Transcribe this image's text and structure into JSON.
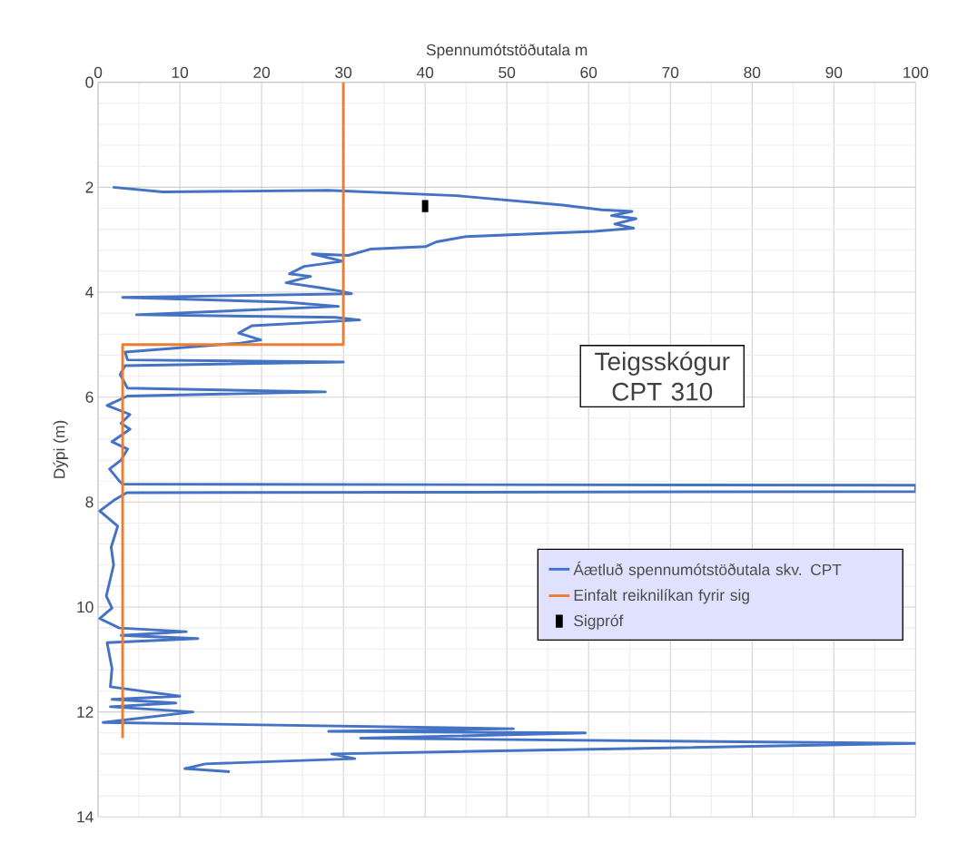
{
  "chart_data": {
    "type": "line",
    "xlabel": "Spennumótstöðutala m",
    "ylabel": "Dýpi (m)",
    "xlim": [
      0,
      100
    ],
    "xticks": [
      0,
      10,
      20,
      30,
      40,
      50,
      60,
      70,
      80,
      90,
      100
    ],
    "ylim": [
      14,
      0
    ],
    "yticks": [
      0,
      2,
      4,
      6,
      8,
      10,
      12,
      14
    ],
    "grid": true,
    "legend": "right",
    "annotations": [
      "Teigsskógur CPT 310"
    ],
    "series": [
      {
        "name": "Áætluð spennumótstöðutala skv. CPT",
        "color": "#4472c4",
        "x": [
          1.8,
          7.9,
          28.1,
          43.8,
          56.8,
          61.6,
          65.3,
          62.8,
          65.8,
          63.2,
          65.5,
          60.7,
          45,
          41.4,
          40.1,
          33.3,
          30.6,
          26.2,
          29.9,
          25.2,
          23.4,
          26,
          23,
          26.9,
          29.7,
          31,
          3,
          23,
          29.4,
          4.7,
          29,
          32,
          18.8,
          17.2,
          19.9,
          17.4,
          3.3,
          3.6,
          30,
          3.3,
          2.7,
          3.6,
          27.8,
          3.6,
          1.1,
          3.9,
          2.8,
          3.9,
          1.7,
          3.6,
          2.8,
          1.4,
          2.6,
          3,
          100,
          100,
          3.5,
          1.9,
          0.2,
          2.4,
          1.6,
          1.9,
          1,
          1.7,
          0.2,
          2.6,
          10.8,
          2.8,
          12.2,
          1.1,
          1.7,
          1.5,
          10,
          1.7,
          9.5,
          1.5,
          11.6,
          0.6,
          50.8,
          28.2,
          59.6,
          32.1,
          100,
          28.6,
          31.4,
          13.1,
          10.6,
          16.1
        ],
        "values": [
          2.0,
          2.09,
          2.06,
          2.16,
          2.34,
          2.43,
          2.46,
          2.54,
          2.6,
          2.7,
          2.78,
          2.84,
          2.94,
          3.04,
          3.13,
          3.18,
          3.3,
          3.27,
          3.41,
          3.51,
          3.65,
          3.7,
          3.82,
          3.91,
          3.98,
          4.03,
          4.1,
          4.19,
          4.27,
          4.43,
          4.48,
          4.53,
          4.64,
          4.78,
          4.91,
          4.97,
          5.14,
          5.29,
          5.33,
          5.4,
          5.57,
          5.83,
          5.9,
          5.98,
          6.16,
          6.33,
          6.5,
          6.61,
          6.85,
          6.99,
          7.2,
          7.37,
          7.6,
          7.66,
          7.68,
          7.8,
          7.82,
          7.97,
          8.17,
          8.46,
          8.86,
          9.2,
          9.79,
          10.02,
          10.22,
          10.4,
          10.47,
          10.54,
          10.6,
          10.68,
          11.17,
          11.52,
          11.7,
          11.76,
          11.83,
          11.9,
          12.0,
          12.2,
          12.32,
          12.37,
          12.4,
          12.5,
          12.6,
          12.8,
          12.89,
          12.99,
          13.08,
          13.14
        ]
      },
      {
        "name": "Einfalt reiknilíkan fyrir sig",
        "color": "#ed7d31",
        "x": [
          30,
          30,
          3,
          3
        ],
        "values": [
          0,
          5,
          5,
          12.5
        ]
      },
      {
        "name": "Sigpróf",
        "color": "#000000",
        "type": "scatter",
        "marker": "square",
        "x": [
          40
        ],
        "values": [
          2.36
        ]
      }
    ]
  }
}
